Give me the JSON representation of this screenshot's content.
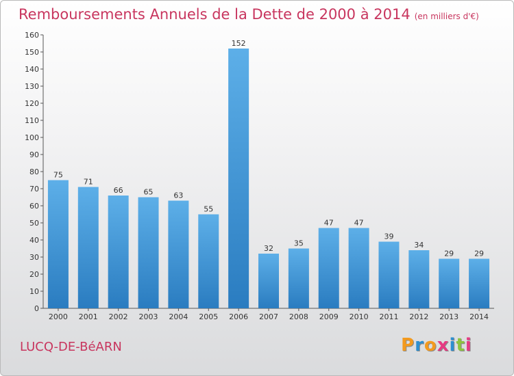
{
  "title": "Remboursements Annuels de la Dette de 2000 à 2014",
  "subtitle": "(en milliers d'€)",
  "commune": "LUCQ-DE-BéARN",
  "logo": {
    "letters": [
      "P",
      "r",
      "o",
      "x",
      "i",
      "t",
      "i"
    ],
    "colors": [
      "#f39a1e",
      "#2d8fd0",
      "#f39a1e",
      "#e63a82",
      "#2d8fd0",
      "#8cc43f",
      "#e63a82"
    ]
  },
  "colors": {
    "bar_top": "#5dafe8",
    "bar_bottom": "#2a7cc0",
    "title": "#c8355e",
    "axis_text": "#333333"
  },
  "chart_data": {
    "type": "bar",
    "categories": [
      "2000",
      "2001",
      "2002",
      "2003",
      "2004",
      "2005",
      "2006",
      "2007",
      "2008",
      "2009",
      "2010",
      "2011",
      "2012",
      "2013",
      "2014"
    ],
    "values": [
      75,
      71,
      66,
      65,
      63,
      55,
      152,
      32,
      35,
      47,
      47,
      39,
      34,
      29,
      29
    ],
    "ylim": [
      0,
      160
    ],
    "yticks": [
      0,
      10,
      20,
      30,
      40,
      50,
      60,
      70,
      80,
      90,
      100,
      110,
      120,
      130,
      140,
      150,
      160
    ],
    "grid": false,
    "data_labels": true
  }
}
